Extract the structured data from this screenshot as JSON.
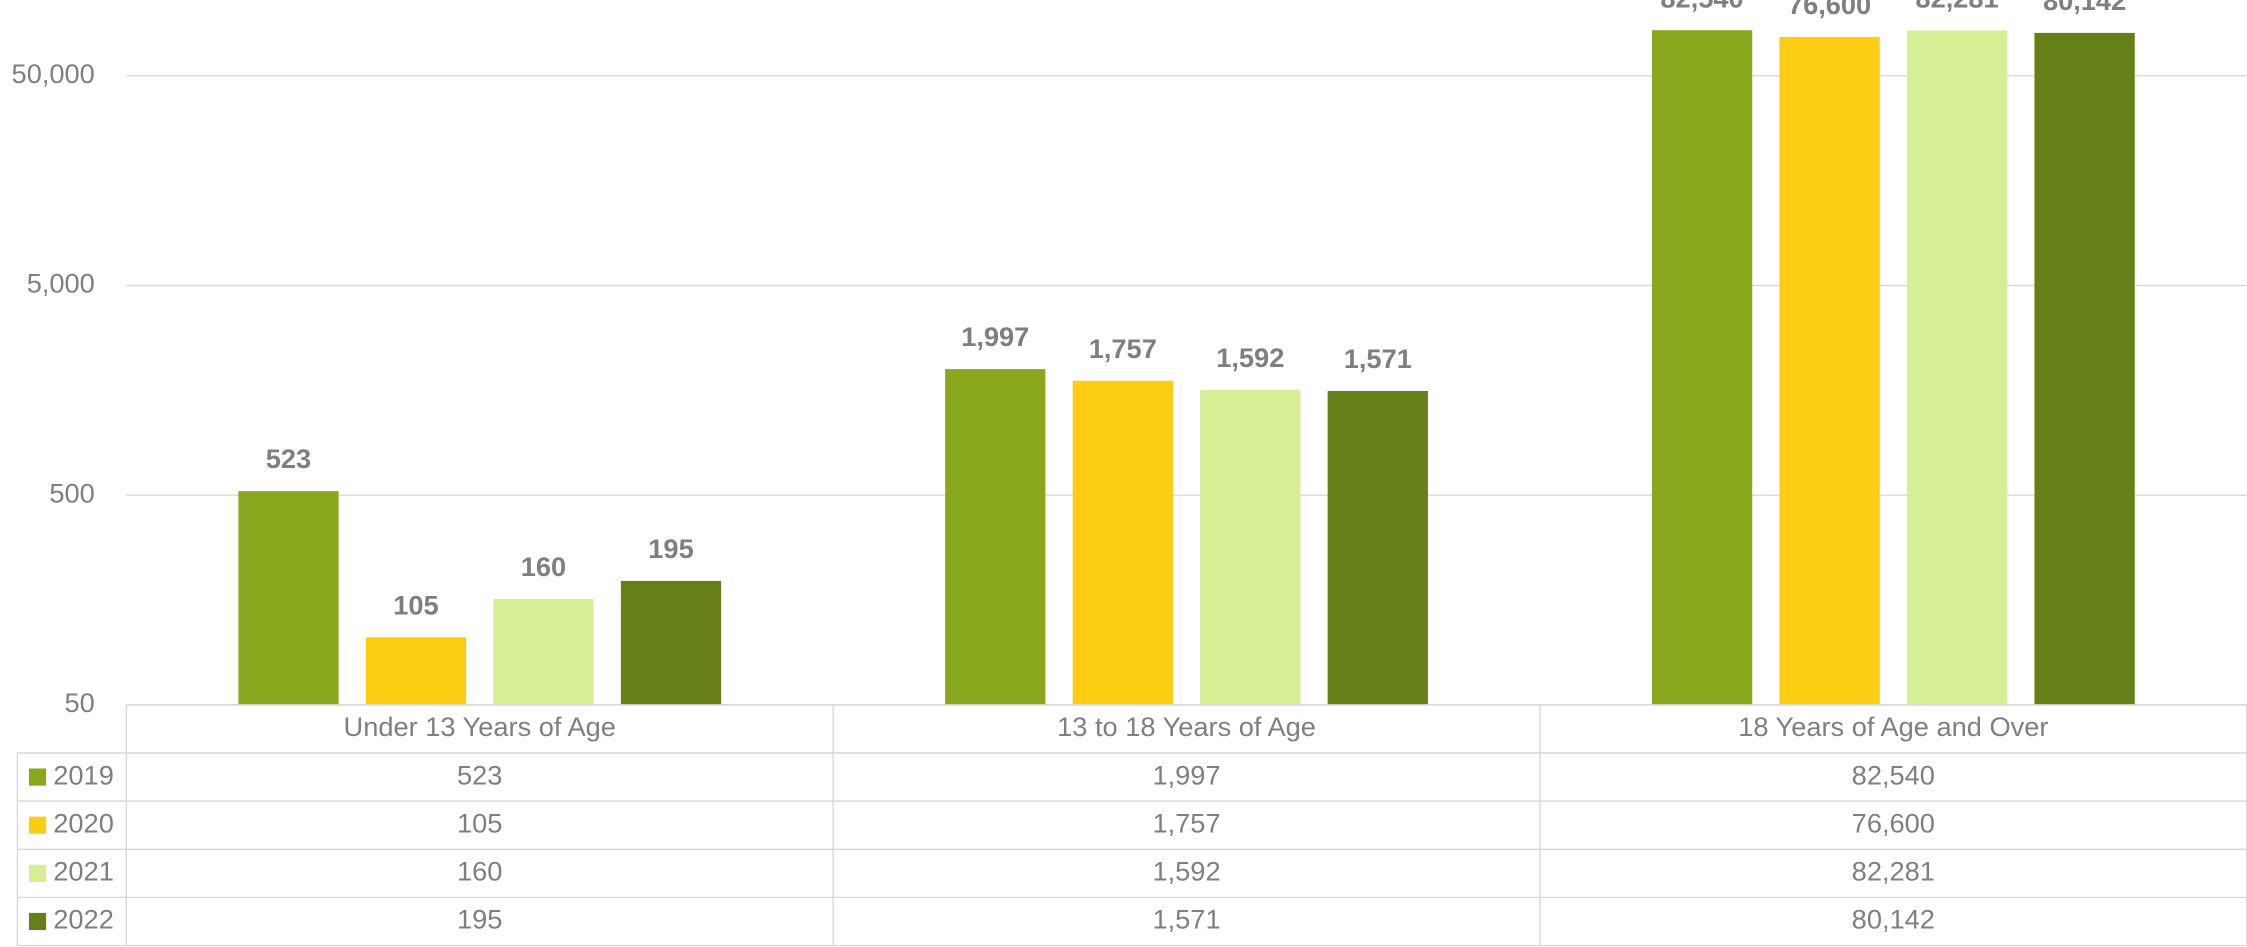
{
  "chart_data": {
    "type": "bar",
    "categories": [
      "Under 13 Years of Age",
      "13 to 18 Years of Age",
      "18 Years of Age and Over"
    ],
    "series": [
      {
        "name": "2019",
        "color": "#8aa81e",
        "values": [
          523,
          1997,
          82540
        ],
        "value_labels": [
          "523",
          "1,997",
          "82,540"
        ]
      },
      {
        "name": "2020",
        "color": "#fccd12",
        "values": [
          105,
          1757,
          76600
        ],
        "value_labels": [
          "105",
          "1,757",
          "76,600"
        ]
      },
      {
        "name": "2021",
        "color": "#d6ee94",
        "values": [
          160,
          1592,
          82281
        ],
        "value_labels": [
          "160",
          "1,592",
          "82,281"
        ]
      },
      {
        "name": "2022",
        "color": "#667f16",
        "values": [
          195,
          1571,
          80142
        ],
        "value_labels": [
          "195",
          "1,571",
          "80,142"
        ]
      }
    ],
    "log_scale": true,
    "ylim": [
      50,
      115000
    ],
    "yticks": [
      50,
      500,
      {
        "value": 5000,
        "label": "5,000"
      },
      {
        "value": 50000,
        "label": "50,000"
      }
    ],
    "grid": true,
    "data_table": true
  }
}
